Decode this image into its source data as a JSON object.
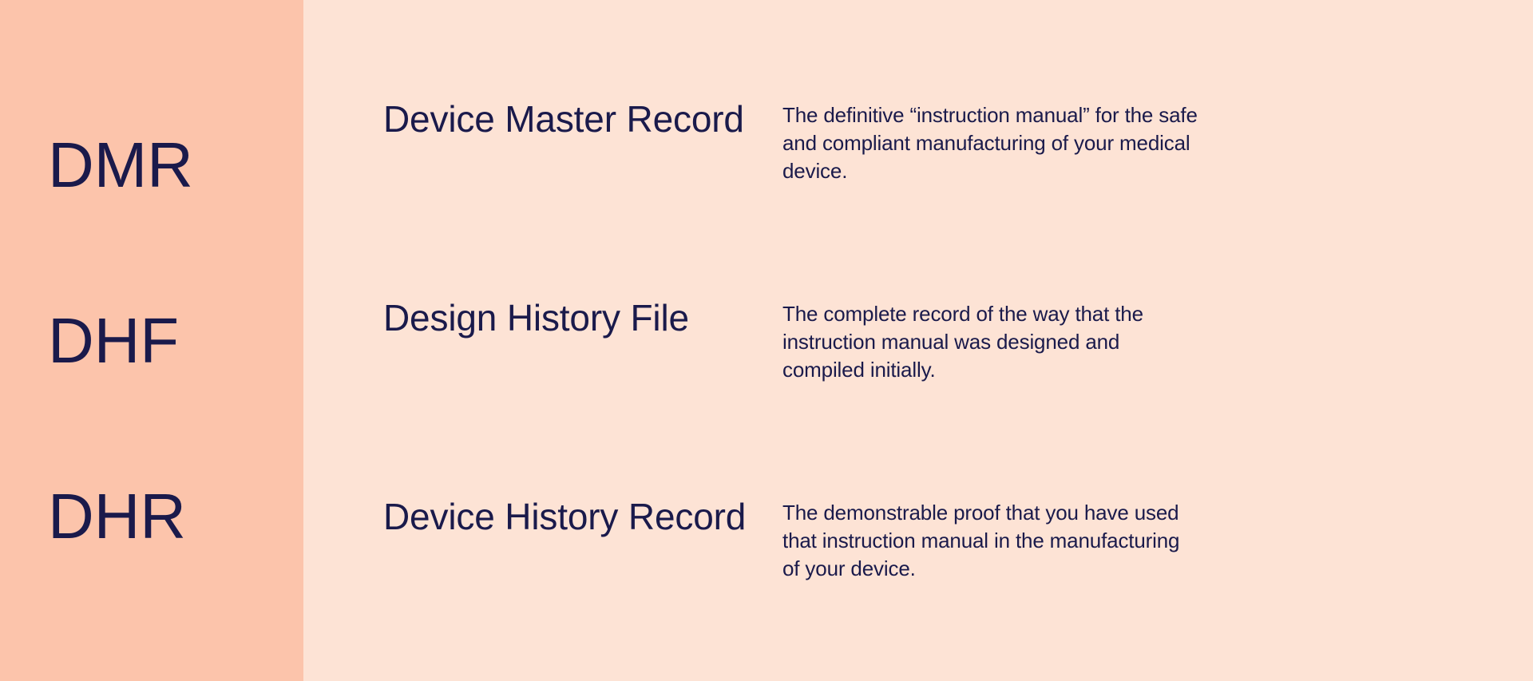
{
  "layout": {
    "left_bg": "#fcc4ab",
    "right_bg": "#fde3d5",
    "text_color": "#1a1a4b",
    "abbrev_fontsize": 80,
    "fullname_fontsize": 46,
    "desc_fontsize": 26
  },
  "rows": [
    {
      "abbrev": "DMR",
      "fullname": "Device Master Record",
      "desc": "The definitive “instruction manual” for the safe and compliant manufacturing of your medical device."
    },
    {
      "abbrev": "DHF",
      "fullname": "Design History File",
      "desc": "The complete record of the way that the instruction manual was designed and compiled initially."
    },
    {
      "abbrev": "DHR",
      "fullname": "Device History Record",
      "desc": "The demonstrable proof that you have used that instruction manual in the manufacturing of your device."
    }
  ]
}
